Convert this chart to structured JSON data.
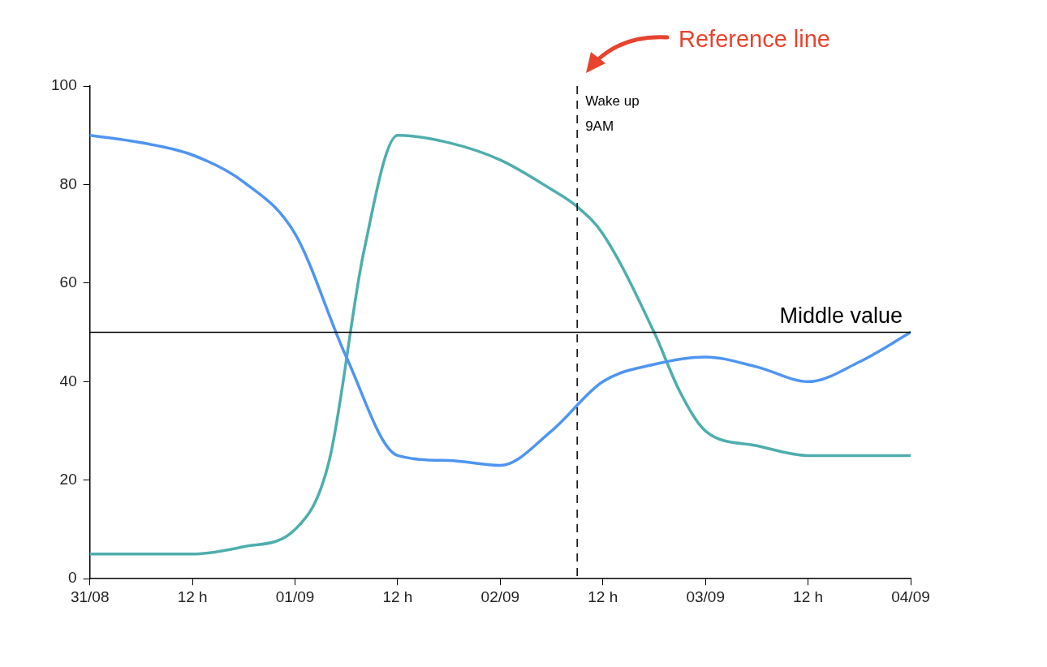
{
  "chart_data": {
    "type": "line",
    "series": [
      {
        "color": "#4e95f0",
        "x": [
          "--08-31T00:00",
          "--08-31T06:00",
          "--08-31T12:00",
          "--08-31T18:00",
          "--09-01T00:00",
          "--09-01T06:00",
          "--09-01T12:00",
          "--09-01T18:00",
          "--09-02T00:00",
          "--09-02T06:00",
          "--09-02T12:00",
          "--09-02T18:00",
          "--09-03T00:00",
          "--09-03T06:00",
          "--09-03T12:00",
          "--09-03T18:00",
          "--09-04T00:00"
        ],
        "values": [
          90,
          88.5,
          86,
          80.5,
          70,
          45,
          25,
          24,
          23,
          30,
          40,
          43.5,
          45,
          43,
          40,
          44,
          50
        ]
      },
      {
        "color": "#4daead",
        "x": [
          "--08-31T00:00",
          "--08-31T12:00",
          "--08-31T18:00",
          "--09-01T00:00",
          "--09-01T04:00",
          "--09-01T08:00",
          "--09-01T12:00",
          "--09-01T18:00",
          "--09-02T00:00",
          "--09-02T06:00",
          "--09-02T09:00",
          "--09-02T12:00",
          "--09-02T18:00",
          "--09-02T21:00",
          "--09-03T00:00",
          "--09-03T06:00",
          "--09-03T12:00",
          "--09-04T00:00"
        ],
        "values": [
          5,
          5,
          6.5,
          10,
          24,
          66,
          90,
          88.5,
          85,
          79,
          75.5,
          70,
          50,
          38,
          30,
          27,
          25,
          25
        ]
      }
    ],
    "xlim": [
      "--08-31T00:00",
      "--09-04T00:00"
    ],
    "xticks": [
      {
        "value": "--08-31T00:00",
        "label": "31/08"
      },
      {
        "value": "--08-31T12:00",
        "label": "12 h"
      },
      {
        "value": "--09-01T00:00",
        "label": "01/09"
      },
      {
        "value": "--09-01T12:00",
        "label": "12 h"
      },
      {
        "value": "--09-02T00:00",
        "label": "02/09"
      },
      {
        "value": "--09-02T12:00",
        "label": "12 h"
      },
      {
        "value": "--09-03T00:00",
        "label": "03/09"
      },
      {
        "value": "--09-03T12:00",
        "label": "12 h"
      },
      {
        "value": "--09-04T00:00",
        "label": "04/09"
      }
    ],
    "ylim": [
      0,
      100
    ],
    "yticks": [
      0,
      20,
      40,
      60,
      80,
      100
    ],
    "grid": false,
    "legend": false,
    "marker": "none",
    "line_style": "solid",
    "ref_lines": [
      {
        "axis": "y",
        "value": 50,
        "label": "Middle value",
        "color": "#000000",
        "line_style": "solid"
      },
      {
        "axis": "x",
        "value": "--09-02T09:00",
        "label": "Wake up\n9AM",
        "color": "#000000",
        "line_style": "dashed"
      }
    ],
    "annotations": [
      "Reference line"
    ]
  }
}
